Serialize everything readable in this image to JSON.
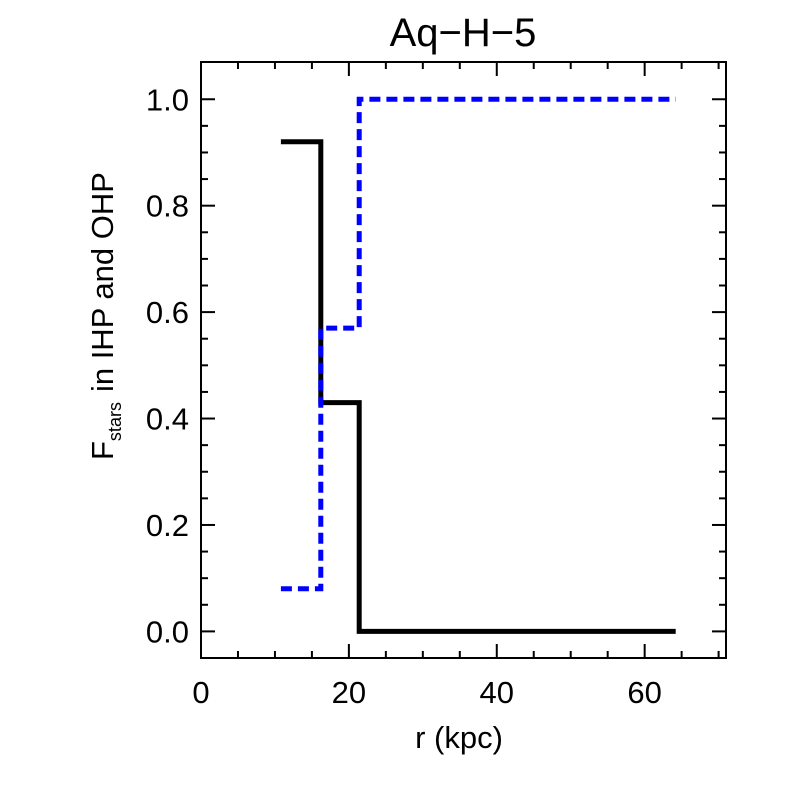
{
  "chart_data": {
    "type": "line",
    "title": "Aq−H−5",
    "xlabel": "r (kpc)",
    "ylabel": {
      "main": "F",
      "subscript": "stars",
      "rest": "in IHP and OHP"
    },
    "xlim": [
      0,
      71
    ],
    "ylim": [
      -0.05,
      1.07
    ],
    "xticks": [
      0,
      20,
      40,
      60
    ],
    "xtick_labels": [
      "0",
      "20",
      "40",
      "60"
    ],
    "yticks": [
      0.0,
      0.2,
      0.4,
      0.6,
      0.8,
      1.0
    ],
    "ytick_labels": [
      "0.0",
      "0.2",
      "0.4",
      "0.6",
      "0.8",
      "1.0"
    ],
    "grid": false,
    "series": [
      {
        "color": "#000000",
        "style": "solid",
        "step": true,
        "x": [
          10.8,
          16.2,
          16.2,
          21.4,
          21.4,
          64.2
        ],
        "y": [
          0.92,
          0.92,
          0.43,
          0.43,
          0.0,
          0.0
        ]
      },
      {
        "color": "#0000ff",
        "style": "dashed",
        "step": true,
        "x": [
          10.8,
          16.2,
          16.2,
          21.4,
          21.4,
          64.2
        ],
        "y": [
          0.08,
          0.08,
          0.57,
          0.57,
          1.0,
          1.0
        ]
      }
    ]
  }
}
